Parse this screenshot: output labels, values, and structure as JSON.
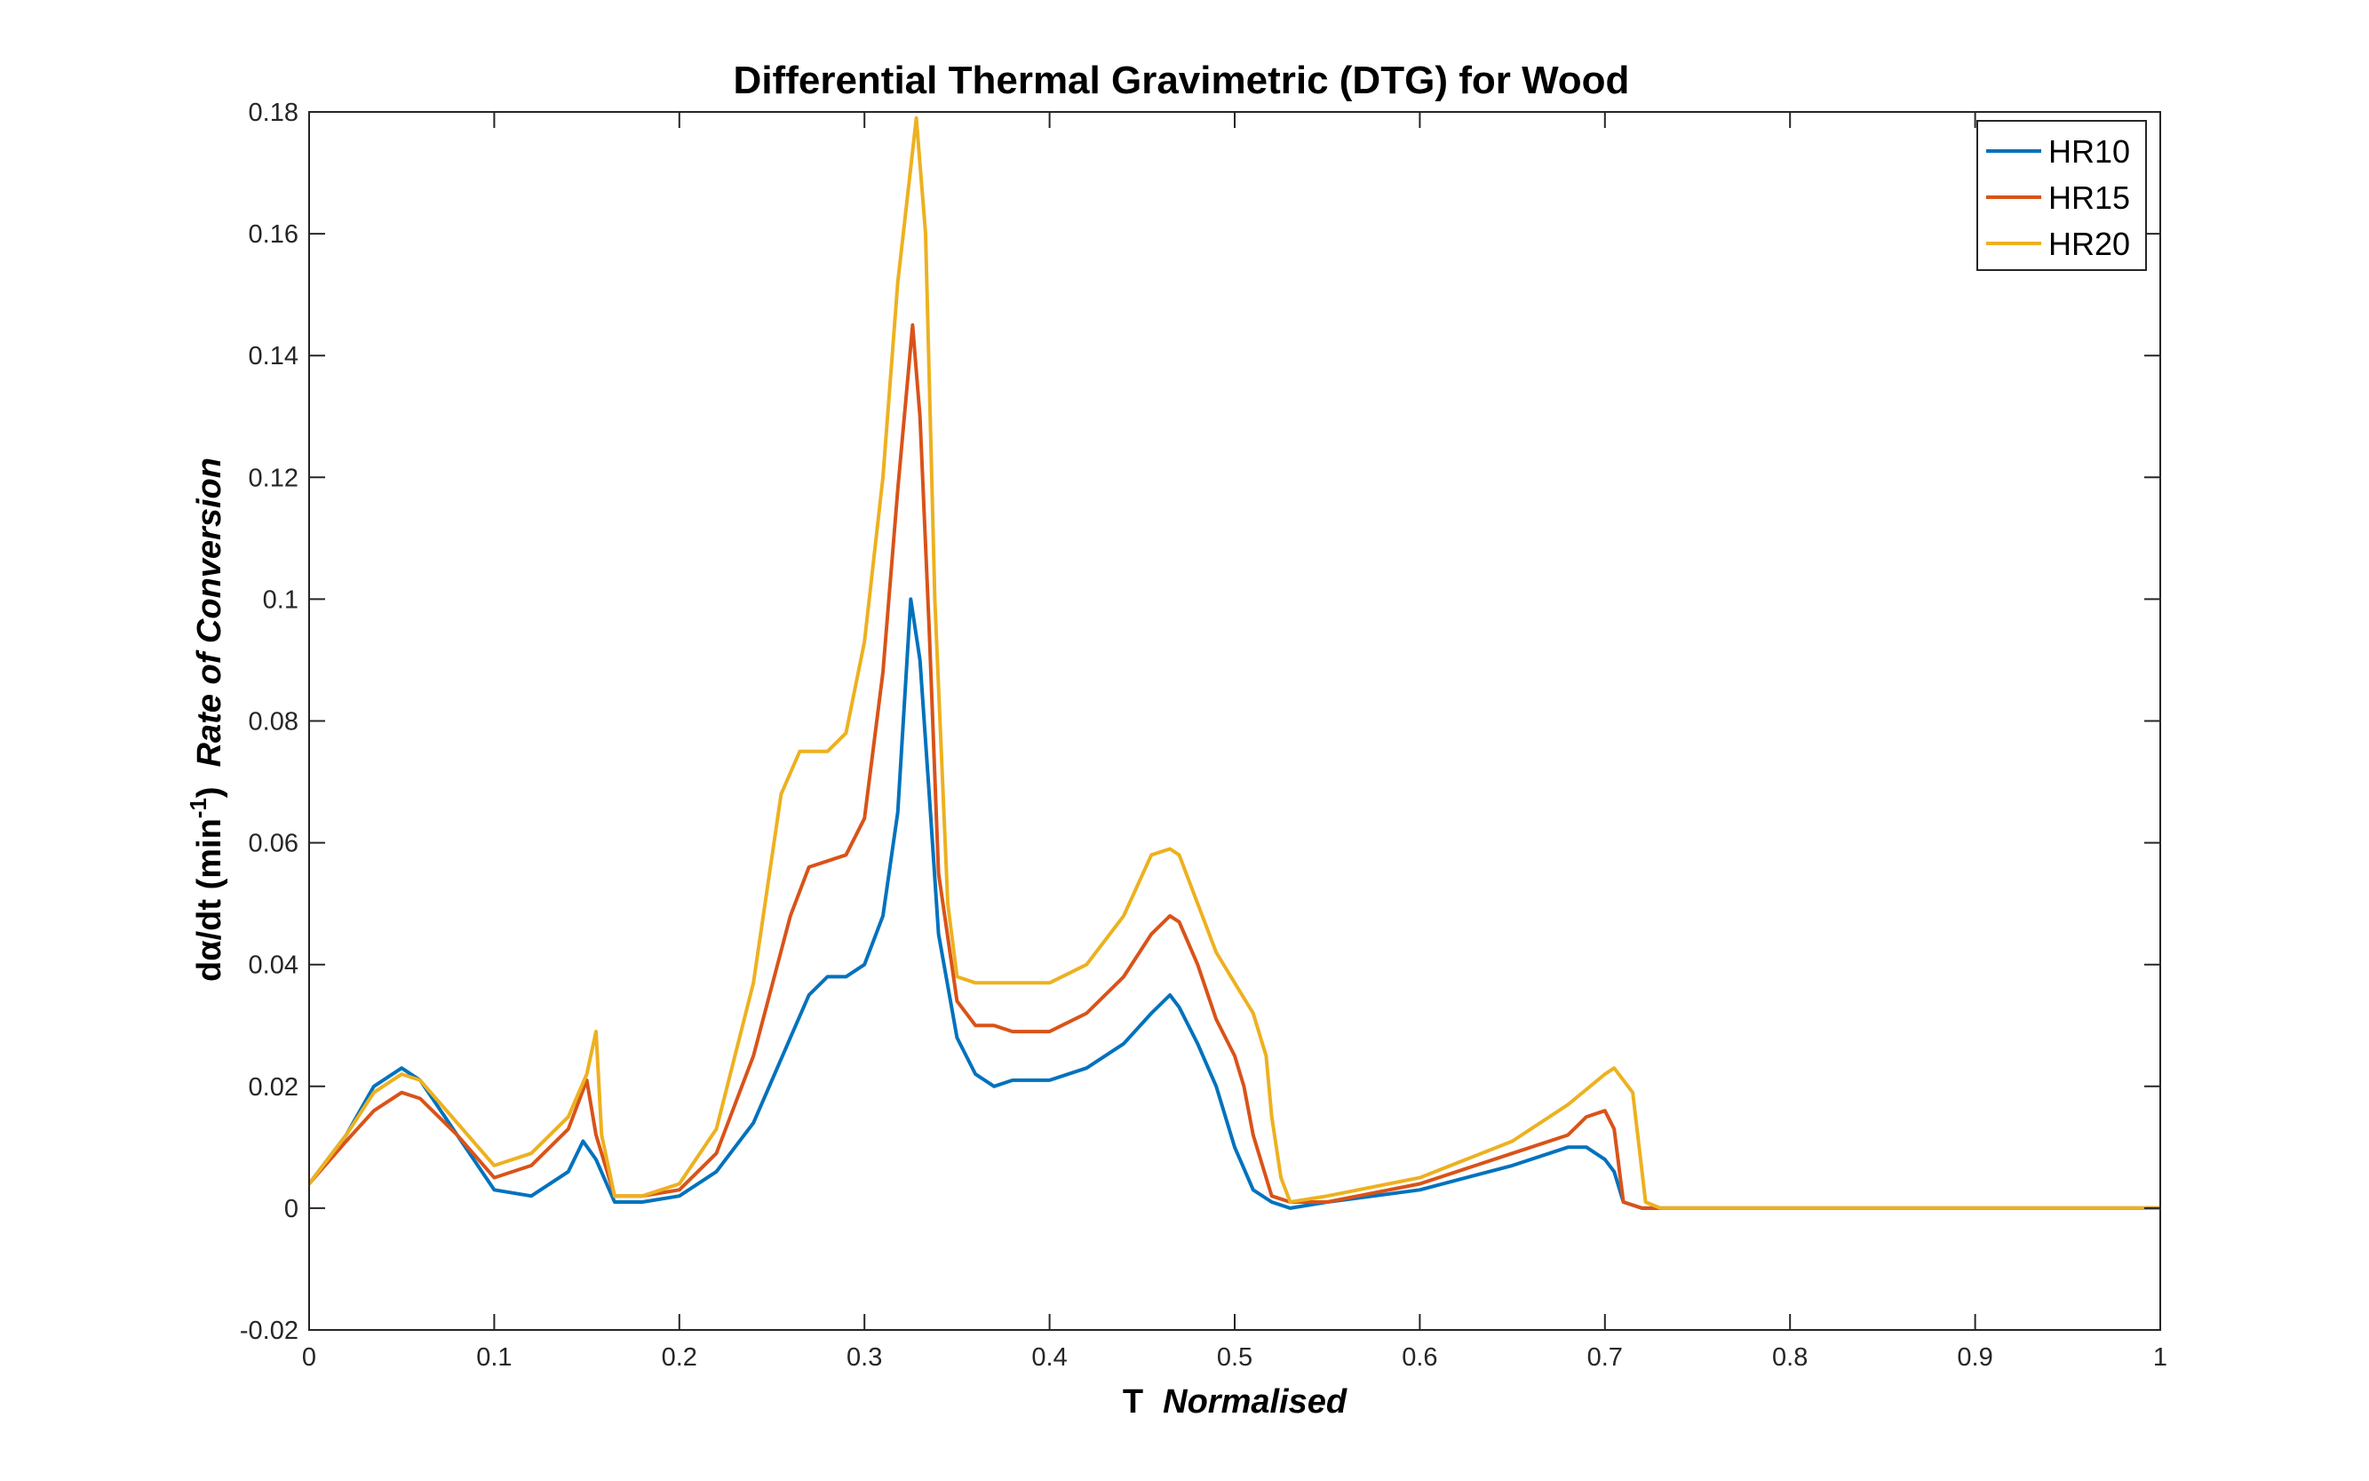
{
  "chart_data": {
    "type": "line",
    "title": "Differential Thermal Gravimetric (DTG) for Wood",
    "xlabel": {
      "main": "T",
      "italic": "Normalised"
    },
    "ylabel": {
      "main": "dα/dt (min",
      "superscript": "-1",
      "close": ")",
      "italic": "Rate of Conversion"
    },
    "xlim": [
      0,
      1
    ],
    "ylim": [
      -0.02,
      0.18
    ],
    "x_ticks": [
      0,
      0.1,
      0.2,
      0.3,
      0.4,
      0.5,
      0.6,
      0.7,
      0.8,
      0.9,
      1
    ],
    "x_tick_labels": [
      "0",
      "0.1",
      "0.2",
      "0.3",
      "0.4",
      "0.5",
      "0.6",
      "0.7",
      "0.8",
      "0.9",
      "1"
    ],
    "y_ticks": [
      -0.02,
      0,
      0.02,
      0.04,
      0.06,
      0.08,
      0.1,
      0.12,
      0.14,
      0.16,
      0.18
    ],
    "y_tick_labels": [
      "-0.02",
      "0",
      "0.02",
      "0.04",
      "0.06",
      "0.08",
      "0.1",
      "0.12",
      "0.14",
      "0.16",
      "0.18"
    ],
    "grid": false,
    "legend_position": "top-right",
    "series": [
      {
        "name": "HR10",
        "color": "#0072BD",
        "x": [
          0,
          0.02,
          0.035,
          0.05,
          0.06,
          0.08,
          0.1,
          0.12,
          0.14,
          0.148,
          0.155,
          0.165,
          0.18,
          0.2,
          0.22,
          0.24,
          0.26,
          0.27,
          0.28,
          0.29,
          0.3,
          0.31,
          0.318,
          0.325,
          0.33,
          0.335,
          0.34,
          0.35,
          0.36,
          0.37,
          0.38,
          0.4,
          0.42,
          0.44,
          0.455,
          0.465,
          0.47,
          0.48,
          0.49,
          0.5,
          0.51,
          0.52,
          0.53,
          0.55,
          0.6,
          0.65,
          0.68,
          0.69,
          0.7,
          0.705,
          0.71,
          0.72,
          0.8,
          0.9,
          1
        ],
        "y": [
          0.004,
          0.012,
          0.02,
          0.023,
          0.021,
          0.012,
          0.003,
          0.002,
          0.006,
          0.011,
          0.008,
          0.001,
          0.001,
          0.002,
          0.006,
          0.014,
          0.028,
          0.035,
          0.038,
          0.038,
          0.04,
          0.048,
          0.065,
          0.1,
          0.09,
          0.068,
          0.045,
          0.028,
          0.022,
          0.02,
          0.021,
          0.021,
          0.023,
          0.027,
          0.032,
          0.035,
          0.033,
          0.027,
          0.02,
          0.01,
          0.003,
          0.001,
          0.0,
          0.001,
          0.003,
          0.007,
          0.01,
          0.01,
          0.008,
          0.006,
          0.001,
          0.0,
          0.0,
          0.0,
          0.0
        ]
      },
      {
        "name": "HR15",
        "color": "#D95319",
        "x": [
          0,
          0.02,
          0.035,
          0.05,
          0.06,
          0.08,
          0.1,
          0.12,
          0.14,
          0.15,
          0.155,
          0.165,
          0.18,
          0.2,
          0.22,
          0.24,
          0.26,
          0.27,
          0.28,
          0.29,
          0.3,
          0.31,
          0.318,
          0.326,
          0.33,
          0.335,
          0.34,
          0.35,
          0.36,
          0.37,
          0.38,
          0.4,
          0.42,
          0.44,
          0.455,
          0.465,
          0.47,
          0.48,
          0.49,
          0.5,
          0.505,
          0.51,
          0.52,
          0.53,
          0.55,
          0.6,
          0.65,
          0.68,
          0.69,
          0.7,
          0.705,
          0.71,
          0.72,
          0.8,
          0.9,
          1
        ],
        "y": [
          0.004,
          0.011,
          0.016,
          0.019,
          0.018,
          0.012,
          0.005,
          0.007,
          0.013,
          0.021,
          0.012,
          0.002,
          0.002,
          0.003,
          0.009,
          0.025,
          0.048,
          0.056,
          0.057,
          0.058,
          0.064,
          0.088,
          0.118,
          0.145,
          0.13,
          0.095,
          0.055,
          0.034,
          0.03,
          0.03,
          0.029,
          0.029,
          0.032,
          0.038,
          0.045,
          0.048,
          0.047,
          0.04,
          0.031,
          0.025,
          0.02,
          0.012,
          0.002,
          0.001,
          0.001,
          0.004,
          0.009,
          0.012,
          0.015,
          0.016,
          0.013,
          0.001,
          0.0,
          0.0,
          0.0,
          0.0
        ]
      },
      {
        "name": "HR20",
        "color": "#EDB120",
        "x": [
          0,
          0.02,
          0.035,
          0.05,
          0.06,
          0.08,
          0.1,
          0.12,
          0.14,
          0.15,
          0.155,
          0.158,
          0.165,
          0.18,
          0.2,
          0.22,
          0.24,
          0.255,
          0.265,
          0.28,
          0.29,
          0.3,
          0.31,
          0.318,
          0.328,
          0.333,
          0.338,
          0.345,
          0.35,
          0.36,
          0.37,
          0.38,
          0.4,
          0.42,
          0.44,
          0.455,
          0.465,
          0.47,
          0.48,
          0.49,
          0.5,
          0.51,
          0.517,
          0.52,
          0.525,
          0.53,
          0.55,
          0.6,
          0.65,
          0.68,
          0.7,
          0.705,
          0.715,
          0.722,
          0.73,
          0.8,
          0.9,
          1
        ],
        "y": [
          0.004,
          0.012,
          0.019,
          0.022,
          0.021,
          0.014,
          0.007,
          0.009,
          0.015,
          0.022,
          0.029,
          0.012,
          0.002,
          0.002,
          0.004,
          0.013,
          0.037,
          0.068,
          0.075,
          0.075,
          0.078,
          0.093,
          0.12,
          0.152,
          0.179,
          0.16,
          0.1,
          0.05,
          0.038,
          0.037,
          0.037,
          0.037,
          0.037,
          0.04,
          0.048,
          0.058,
          0.059,
          0.058,
          0.05,
          0.042,
          0.037,
          0.032,
          0.025,
          0.015,
          0.005,
          0.001,
          0.002,
          0.005,
          0.011,
          0.017,
          0.022,
          0.023,
          0.019,
          0.001,
          0.0,
          0.0,
          0.0,
          0.0
        ]
      }
    ]
  }
}
